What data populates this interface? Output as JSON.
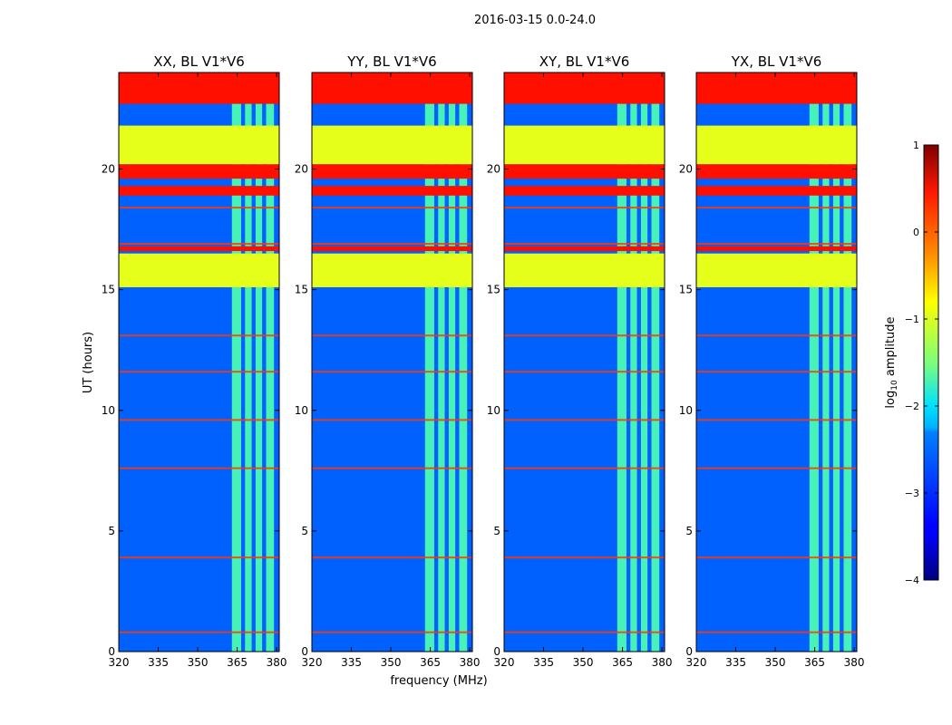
{
  "chart_data": {
    "type": "heatmap",
    "suptitle": "2016-03-15 0.0-24.0",
    "xlabel": "frequency (MHz)",
    "ylabel": "UT (hours)",
    "xlim": [
      320,
      381
    ],
    "ylim": [
      0,
      24
    ],
    "xticks": [
      320,
      335,
      350,
      365,
      380
    ],
    "yticks": [
      0,
      5,
      10,
      15,
      20
    ],
    "panels": [
      {
        "title": "XX, BL V1*V6"
      },
      {
        "title": "YY, BL V1*V6"
      },
      {
        "title": "XY, BL V1*V6"
      },
      {
        "title": "YX, BL V1*V6"
      }
    ],
    "colorbar": {
      "label_prefix": "log",
      "label_sub": "10",
      "label_suffix": " amplitude",
      "range": [
        -4,
        1
      ],
      "ticks": [
        1,
        0,
        -1,
        -2,
        -3,
        -4
      ],
      "tick_labels": [
        "1",
        "0",
        "−1",
        "−2",
        "−3",
        "−4"
      ],
      "colormap": "jet"
    },
    "background_level": -2.9,
    "flagged_bands": [
      {
        "from": 22.7,
        "to": 24.0,
        "level": 0.3
      },
      {
        "from": 19.6,
        "to": 20.2,
        "level": 0.3
      },
      {
        "from": 18.9,
        "to": 19.3,
        "level": 0.3
      },
      {
        "from": 16.6,
        "to": 16.8,
        "level": 0.3
      },
      {
        "from": 20.2,
        "to": 21.8,
        "level": -1.0
      },
      {
        "from": 15.1,
        "to": 16.5,
        "level": -1.0
      }
    ],
    "rfi_band_lines_ut": [
      0.8,
      3.9,
      7.6,
      9.6,
      11.6,
      13.1,
      16.9,
      18.4
    ],
    "rfi_channels_mhz": [
      {
        "from": 363.0,
        "to": 366.5
      },
      {
        "from": 368.0,
        "to": 370.5
      },
      {
        "from": 372.0,
        "to": 374.5
      },
      {
        "from": 376.0,
        "to": 379.0
      }
    ]
  }
}
